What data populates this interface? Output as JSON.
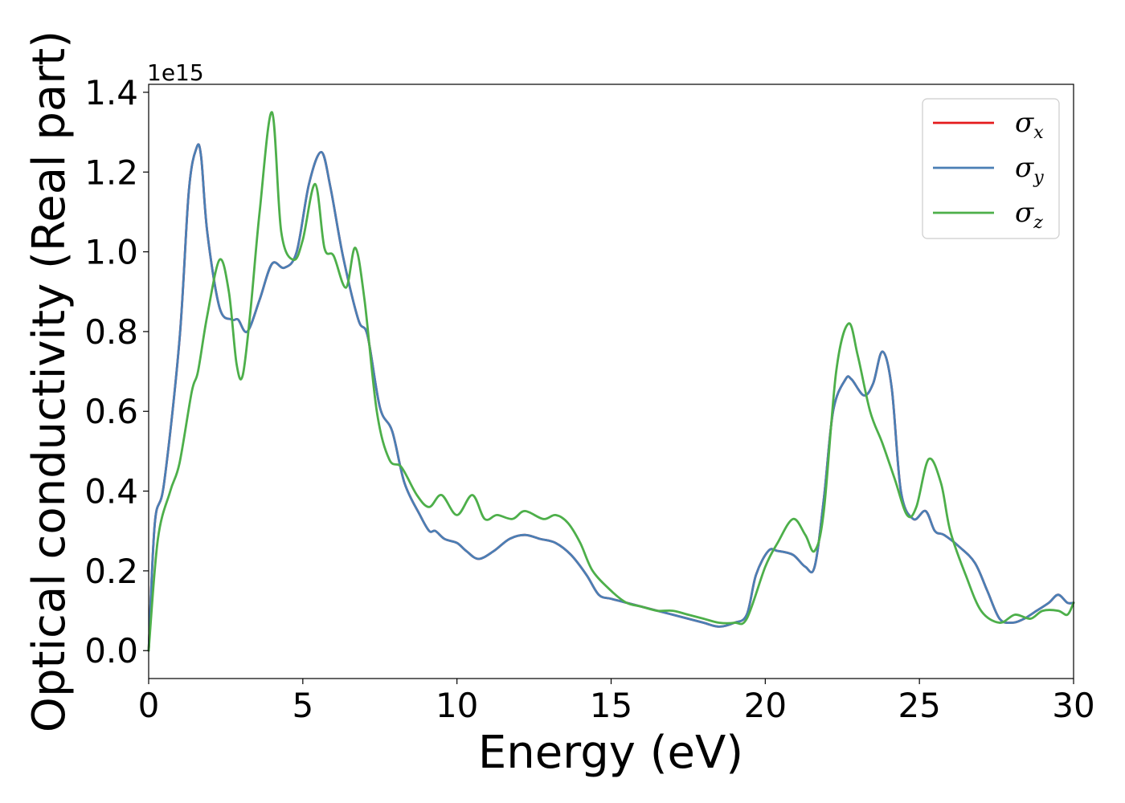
{
  "chart_data": {
    "type": "line",
    "xlabel": "Energy (eV)",
    "ylabel": "Optical conductivity (Real part)",
    "y_offset_label": "1e15",
    "xlim": [
      0,
      30
    ],
    "ylim": [
      -0.07,
      1.42
    ],
    "x_ticks": [
      0,
      5,
      10,
      15,
      20,
      25,
      30
    ],
    "x_tick_labels": [
      "0",
      "5",
      "10",
      "15",
      "20",
      "25",
      "30"
    ],
    "y_ticks": [
      0.0,
      0.2,
      0.4,
      0.6,
      0.8,
      1.0,
      1.2,
      1.4
    ],
    "y_tick_labels": [
      "0.0",
      "0.2",
      "0.4",
      "0.6",
      "0.8",
      "1.0",
      "1.2",
      "1.4"
    ],
    "grid": false,
    "legend_position": "top-right",
    "series": [
      {
        "name": "σ",
        "subscript": "x",
        "color": "#e41a1c",
        "x": [
          0,
          0.2,
          0.5,
          1.0,
          1.3,
          1.55,
          1.7,
          1.9,
          2.3,
          2.7,
          2.9,
          3.2,
          3.6,
          4.0,
          4.4,
          4.8,
          5.2,
          5.6,
          5.9,
          6.3,
          6.8,
          7.1,
          7.5,
          7.9,
          8.3,
          8.8,
          9.1,
          9.3,
          9.6,
          10.0,
          10.3,
          10.7,
          11.2,
          11.7,
          12.2,
          12.7,
          13.2,
          13.7,
          14.2,
          14.6,
          15.0,
          15.5,
          16.0,
          16.5,
          17.0,
          17.5,
          18.0,
          18.5,
          19.0,
          19.4,
          19.7,
          20.1,
          20.4,
          20.9,
          21.3,
          21.6,
          21.9,
          22.2,
          22.6,
          22.8,
          23.2,
          23.5,
          23.8,
          24.1,
          24.4,
          24.8,
          25.2,
          25.5,
          25.8,
          26.3,
          26.8,
          27.2,
          27.6,
          28.0,
          28.4,
          28.8,
          29.2,
          29.5,
          29.8,
          30.0
        ],
        "y": [
          0.0,
          0.32,
          0.42,
          0.78,
          1.15,
          1.26,
          1.24,
          1.05,
          0.86,
          0.83,
          0.83,
          0.8,
          0.88,
          0.97,
          0.96,
          1.0,
          1.17,
          1.25,
          1.16,
          0.99,
          0.83,
          0.79,
          0.61,
          0.55,
          0.42,
          0.34,
          0.3,
          0.3,
          0.28,
          0.27,
          0.25,
          0.23,
          0.25,
          0.28,
          0.29,
          0.28,
          0.27,
          0.24,
          0.19,
          0.14,
          0.13,
          0.12,
          0.11,
          0.1,
          0.09,
          0.08,
          0.07,
          0.06,
          0.07,
          0.09,
          0.19,
          0.25,
          0.25,
          0.24,
          0.21,
          0.21,
          0.38,
          0.6,
          0.68,
          0.68,
          0.64,
          0.67,
          0.75,
          0.66,
          0.4,
          0.33,
          0.35,
          0.3,
          0.29,
          0.26,
          0.22,
          0.15,
          0.08,
          0.07,
          0.08,
          0.1,
          0.12,
          0.14,
          0.12,
          0.12
        ]
      },
      {
        "name": "σ",
        "subscript": "y",
        "color": "#4a7fb5",
        "x": [
          0,
          0.2,
          0.5,
          1.0,
          1.3,
          1.55,
          1.7,
          1.9,
          2.3,
          2.7,
          2.9,
          3.2,
          3.6,
          4.0,
          4.4,
          4.8,
          5.2,
          5.6,
          5.9,
          6.3,
          6.8,
          7.1,
          7.5,
          7.9,
          8.3,
          8.8,
          9.1,
          9.3,
          9.6,
          10.0,
          10.3,
          10.7,
          11.2,
          11.7,
          12.2,
          12.7,
          13.2,
          13.7,
          14.2,
          14.6,
          15.0,
          15.5,
          16.0,
          16.5,
          17.0,
          17.5,
          18.0,
          18.5,
          19.0,
          19.4,
          19.7,
          20.1,
          20.4,
          20.9,
          21.3,
          21.6,
          21.9,
          22.2,
          22.6,
          22.8,
          23.2,
          23.5,
          23.8,
          24.1,
          24.4,
          24.8,
          25.2,
          25.5,
          25.8,
          26.3,
          26.8,
          27.2,
          27.6,
          28.0,
          28.4,
          28.8,
          29.2,
          29.5,
          29.8,
          30.0
        ],
        "y": [
          0.0,
          0.32,
          0.42,
          0.78,
          1.15,
          1.26,
          1.24,
          1.05,
          0.86,
          0.83,
          0.83,
          0.8,
          0.88,
          0.97,
          0.96,
          1.0,
          1.17,
          1.25,
          1.16,
          0.99,
          0.83,
          0.79,
          0.61,
          0.55,
          0.42,
          0.34,
          0.3,
          0.3,
          0.28,
          0.27,
          0.25,
          0.23,
          0.25,
          0.28,
          0.29,
          0.28,
          0.27,
          0.24,
          0.19,
          0.14,
          0.13,
          0.12,
          0.11,
          0.1,
          0.09,
          0.08,
          0.07,
          0.06,
          0.07,
          0.09,
          0.19,
          0.25,
          0.25,
          0.24,
          0.21,
          0.21,
          0.38,
          0.6,
          0.68,
          0.68,
          0.64,
          0.67,
          0.75,
          0.66,
          0.4,
          0.33,
          0.35,
          0.3,
          0.29,
          0.26,
          0.22,
          0.15,
          0.08,
          0.07,
          0.08,
          0.1,
          0.12,
          0.14,
          0.12,
          0.12
        ]
      },
      {
        "name": "σ",
        "subscript": "z",
        "color": "#4daf4a",
        "x": [
          0,
          0.3,
          0.7,
          1.0,
          1.4,
          1.6,
          1.9,
          2.3,
          2.6,
          2.85,
          3.05,
          3.3,
          3.6,
          4.0,
          4.3,
          4.7,
          5.0,
          5.4,
          5.7,
          6.0,
          6.4,
          6.7,
          7.0,
          7.4,
          7.8,
          8.2,
          8.7,
          9.1,
          9.5,
          10.0,
          10.5,
          10.9,
          11.3,
          11.8,
          12.2,
          12.8,
          13.2,
          13.6,
          14.0,
          14.4,
          15.0,
          15.5,
          16.0,
          16.5,
          17.0,
          17.5,
          18.0,
          18.5,
          19.0,
          19.4,
          20.0,
          20.4,
          20.9,
          21.3,
          21.6,
          21.9,
          22.3,
          22.7,
          23.0,
          23.4,
          23.8,
          24.2,
          24.6,
          24.9,
          25.3,
          25.7,
          26.0,
          26.5,
          27.0,
          27.6,
          28.1,
          28.6,
          29.0,
          29.5,
          29.8,
          30.0
        ],
        "y": [
          0.0,
          0.28,
          0.4,
          0.47,
          0.65,
          0.7,
          0.84,
          0.98,
          0.9,
          0.72,
          0.69,
          0.85,
          1.1,
          1.35,
          1.05,
          0.98,
          1.03,
          1.17,
          1.01,
          0.99,
          0.91,
          1.01,
          0.88,
          0.6,
          0.48,
          0.46,
          0.39,
          0.36,
          0.39,
          0.34,
          0.39,
          0.33,
          0.34,
          0.33,
          0.35,
          0.33,
          0.34,
          0.32,
          0.27,
          0.2,
          0.15,
          0.12,
          0.11,
          0.1,
          0.1,
          0.09,
          0.08,
          0.07,
          0.07,
          0.08,
          0.21,
          0.27,
          0.33,
          0.29,
          0.25,
          0.35,
          0.7,
          0.82,
          0.74,
          0.6,
          0.52,
          0.43,
          0.34,
          0.36,
          0.48,
          0.42,
          0.3,
          0.19,
          0.1,
          0.07,
          0.09,
          0.08,
          0.1,
          0.1,
          0.09,
          0.12
        ]
      }
    ]
  }
}
